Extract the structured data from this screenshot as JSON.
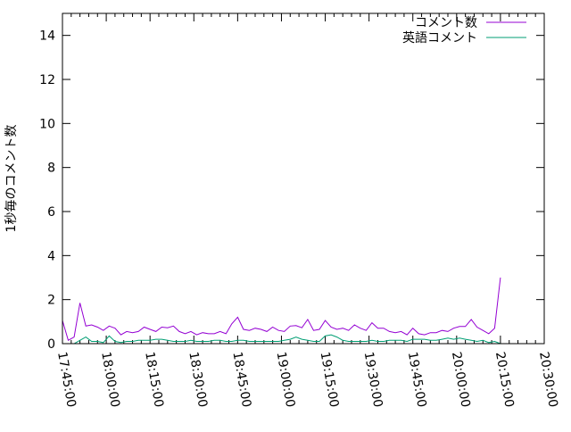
{
  "chart_data": {
    "type": "line",
    "title": "",
    "xlabel": "",
    "ylabel": "1秒毎のコメント数",
    "xlim": [
      "17:45:00",
      "20:30:00"
    ],
    "ylim": [
      0,
      15
    ],
    "xticks": [
      "17:45:00",
      "18:00:00",
      "18:15:00",
      "18:30:00",
      "18:45:00",
      "19:00:00",
      "19:15:00",
      "19:30:00",
      "19:45:00",
      "20:00:00",
      "20:15:00",
      "20:30:00"
    ],
    "yticks": [
      "0",
      "2",
      "4",
      "6",
      "8",
      "10",
      "12",
      "14"
    ],
    "grid": false,
    "legend": "top-right",
    "x": [
      "17:45",
      "17:47",
      "17:49",
      "17:51",
      "17:53",
      "17:55",
      "17:57",
      "17:59",
      "18:01",
      "18:03",
      "18:05",
      "18:07",
      "18:09",
      "18:11",
      "18:13",
      "18:15",
      "18:17",
      "18:19",
      "18:21",
      "18:23",
      "18:25",
      "18:27",
      "18:29",
      "18:31",
      "18:33",
      "18:35",
      "18:37",
      "18:39",
      "18:41",
      "18:43",
      "18:45",
      "18:47",
      "18:49",
      "18:51",
      "18:53",
      "18:55",
      "18:57",
      "18:59",
      "19:01",
      "19:03",
      "19:05",
      "19:07",
      "19:09",
      "19:11",
      "19:13",
      "19:15",
      "19:17",
      "19:19",
      "19:21",
      "19:23",
      "19:25",
      "19:27",
      "19:29",
      "19:31",
      "19:33",
      "19:35",
      "19:37",
      "19:39",
      "19:41",
      "19:43",
      "19:45",
      "19:47",
      "19:49",
      "19:51",
      "19:53",
      "19:55",
      "19:57",
      "19:59",
      "20:01",
      "20:03",
      "20:05",
      "20:07",
      "20:09",
      "20:11",
      "20:13",
      "20:15"
    ],
    "series": [
      {
        "name": "コメント数",
        "color": "#9400d3",
        "values": [
          1.05,
          0.15,
          0.3,
          1.85,
          0.8,
          0.85,
          0.75,
          0.6,
          0.8,
          0.7,
          0.4,
          0.55,
          0.5,
          0.55,
          0.75,
          0.65,
          0.55,
          0.75,
          0.72,
          0.8,
          0.55,
          0.45,
          0.55,
          0.4,
          0.5,
          0.45,
          0.45,
          0.55,
          0.45,
          0.9,
          1.2,
          0.65,
          0.6,
          0.7,
          0.65,
          0.55,
          0.75,
          0.6,
          0.55,
          0.8,
          0.82,
          0.72,
          1.1,
          0.6,
          0.65,
          1.05,
          0.75,
          0.65,
          0.7,
          0.6,
          0.85,
          0.7,
          0.6,
          0.95,
          0.7,
          0.7,
          0.55,
          0.5,
          0.55,
          0.4,
          0.7,
          0.45,
          0.4,
          0.5,
          0.5,
          0.6,
          0.55,
          0.7,
          0.78,
          0.78,
          1.1,
          0.75,
          0.6,
          0.45,
          0.7,
          3.0
        ]
      },
      {
        "name": "英語コメント",
        "color": "#009e73",
        "values": [
          0.0,
          0.0,
          0.0,
          0.15,
          0.3,
          0.1,
          0.1,
          0.05,
          0.35,
          0.1,
          0.05,
          0.1,
          0.1,
          0.15,
          0.15,
          0.15,
          0.2,
          0.2,
          0.15,
          0.1,
          0.1,
          0.1,
          0.15,
          0.1,
          0.1,
          0.1,
          0.15,
          0.15,
          0.1,
          0.1,
          0.15,
          0.15,
          0.1,
          0.1,
          0.1,
          0.1,
          0.1,
          0.1,
          0.15,
          0.2,
          0.3,
          0.2,
          0.15,
          0.1,
          0.1,
          0.35,
          0.4,
          0.3,
          0.15,
          0.1,
          0.1,
          0.1,
          0.1,
          0.15,
          0.1,
          0.1,
          0.15,
          0.15,
          0.15,
          0.1,
          0.2,
          0.2,
          0.2,
          0.15,
          0.15,
          0.2,
          0.25,
          0.2,
          0.25,
          0.2,
          0.15,
          0.1,
          0.15,
          0.05,
          0.1,
          0.0
        ]
      }
    ]
  }
}
